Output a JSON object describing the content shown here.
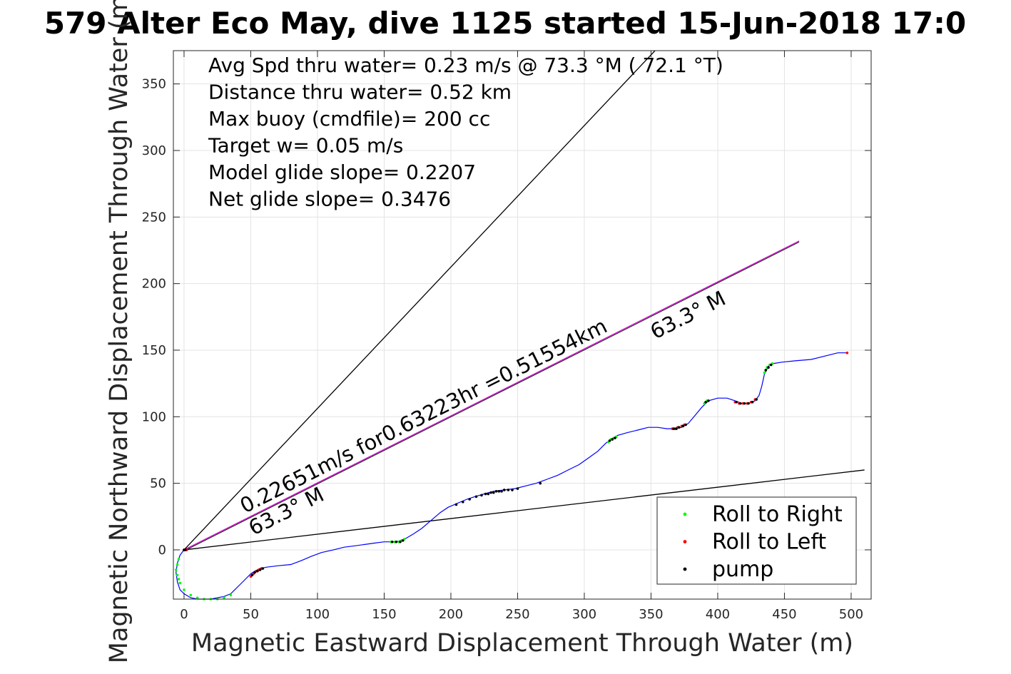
{
  "title": "579 Alter Eco May, dive 1125 started 15-Jun-2018 17:0",
  "chart_data": {
    "type": "line",
    "xlabel": "Magnetic Eastward Displacement Through Water (m)",
    "ylabel": "Magnetic Northward Displacement Through Water (m)",
    "xlim": [
      -8,
      515
    ],
    "ylim": [
      -37,
      375
    ],
    "xticks": [
      0,
      50,
      100,
      150,
      200,
      250,
      300,
      350,
      400,
      450,
      500
    ],
    "yticks": [
      0,
      50,
      100,
      150,
      200,
      250,
      300,
      350
    ],
    "grid": true,
    "info_lines": [
      "Avg Spd thru water=  0.23 m/s @  73.3 °M ( 72.1 °T)",
      "Distance thru water=  0.52 km",
      "Max buoy (cmdfile)= 200 cc",
      "Target w= 0.05 m/s",
      "Model glide slope= 0.2207",
      "Net glide slope= 0.3476"
    ],
    "annotations": {
      "speed_line": "0.22651m/s for0.63223hr =0.51554km",
      "heading_end": "63.3° M",
      "heading_start": "63.3° M"
    },
    "reference_lines": [
      {
        "name": "upper-bound",
        "x": [
          0,
          353
        ],
        "y": [
          0,
          375
        ],
        "color": "#000000"
      },
      {
        "name": "lower-bound",
        "x": [
          0,
          510
        ],
        "y": [
          0,
          60
        ],
        "color": "#000000"
      },
      {
        "name": "heading",
        "x": [
          0,
          461
        ],
        "y": [
          0,
          232
        ],
        "color": "#cc00cc"
      }
    ],
    "track": {
      "color": "#0000ff",
      "x": [
        0,
        -3,
        -5,
        -6,
        -5,
        -3,
        0,
        5,
        10,
        15,
        20,
        25,
        30,
        35,
        38,
        42,
        46,
        50,
        53,
        57,
        62,
        70,
        80,
        88,
        95,
        103,
        112,
        120,
        128,
        135,
        142,
        150,
        158,
        163,
        167,
        172,
        178,
        185,
        192,
        198,
        205,
        212,
        218,
        225,
        232,
        240,
        248,
        256,
        264,
        272,
        280,
        288,
        296,
        303,
        310,
        316,
        320,
        325,
        332,
        340,
        348,
        355,
        362,
        368,
        373,
        378,
        383,
        388,
        393,
        400,
        407,
        413,
        418,
        423,
        428,
        431,
        433,
        435,
        438,
        442,
        448,
        458,
        470,
        482,
        490,
        497
      ],
      "y": [
        0,
        -4,
        -10,
        -17,
        -24,
        -30,
        -33,
        -36,
        -37,
        -37,
        -37,
        -36,
        -35,
        -33,
        -30,
        -26,
        -22,
        -18,
        -16,
        -14,
        -13,
        -12,
        -11,
        -8,
        -5,
        -2,
        0,
        2,
        3,
        4,
        5,
        6,
        6,
        7,
        9,
        12,
        16,
        22,
        28,
        32,
        35,
        38,
        40,
        42,
        44,
        45,
        46,
        48,
        50,
        53,
        56,
        60,
        64,
        69,
        74,
        80,
        83,
        86,
        88,
        90,
        92,
        92,
        91,
        91,
        92,
        95,
        101,
        107,
        112,
        114,
        114,
        112,
        110,
        110,
        112,
        116,
        123,
        132,
        138,
        140,
        141,
        142,
        143,
        146,
        148,
        148
      ]
    },
    "series": [
      {
        "name": "Roll to Right",
        "color": "#00ff00",
        "x": [
          -4,
          -5,
          -6,
          -5,
          -4,
          -3,
          0,
          5,
          10,
          15,
          20,
          25,
          30,
          35,
          155,
          158,
          161,
          163,
          165,
          318,
          320,
          322,
          324,
          390,
          392,
          435,
          436,
          437,
          439,
          441
        ],
        "y": [
          -7,
          -11,
          -15,
          -19,
          -22,
          -25,
          -30,
          -34,
          -36,
          -37,
          -37,
          -37,
          -36,
          -34,
          6,
          6,
          6,
          7,
          8,
          81,
          83,
          84,
          85,
          110,
          112,
          133,
          135,
          137,
          139,
          140
        ]
      },
      {
        "name": "Roll to Left",
        "color": "#ff0000",
        "x": [
          0,
          1,
          2,
          50,
          52,
          54,
          56,
          58,
          366,
          368,
          370,
          373,
          375,
          413,
          416,
          419,
          422,
          425,
          428,
          497
        ],
        "y": [
          0,
          0,
          0,
          -20,
          -18,
          -16,
          -15,
          -14,
          91,
          91,
          92,
          93,
          94,
          111,
          110,
          110,
          110,
          111,
          113,
          148
        ]
      },
      {
        "name": "pump",
        "color": "#000000",
        "x": [
          0,
          1,
          51,
          53,
          55,
          57,
          59,
          156,
          159,
          162,
          164,
          204,
          209,
          214,
          219,
          223,
          226,
          228,
          230,
          232,
          234,
          236,
          238,
          240,
          243,
          246,
          250,
          267,
          319,
          321,
          323,
          367,
          369,
          371,
          374,
          376,
          391,
          393,
          414,
          417,
          420,
          423,
          426,
          429,
          436,
          438,
          440
        ],
        "y": [
          0,
          0,
          -19,
          -17,
          -16,
          -15,
          -14,
          6,
          6,
          6,
          7,
          34,
          36,
          38,
          40,
          41,
          42,
          42,
          43,
          43,
          44,
          44,
          44,
          45,
          45,
          45,
          46,
          50,
          82,
          83,
          84,
          91,
          91,
          92,
          93,
          94,
          111,
          112,
          111,
          110,
          110,
          110,
          111,
          113,
          135,
          137,
          139
        ]
      }
    ],
    "legend": {
      "position": "bottom-right",
      "entries": [
        "Roll to Right",
        "Roll to Left",
        "pump"
      ]
    }
  }
}
